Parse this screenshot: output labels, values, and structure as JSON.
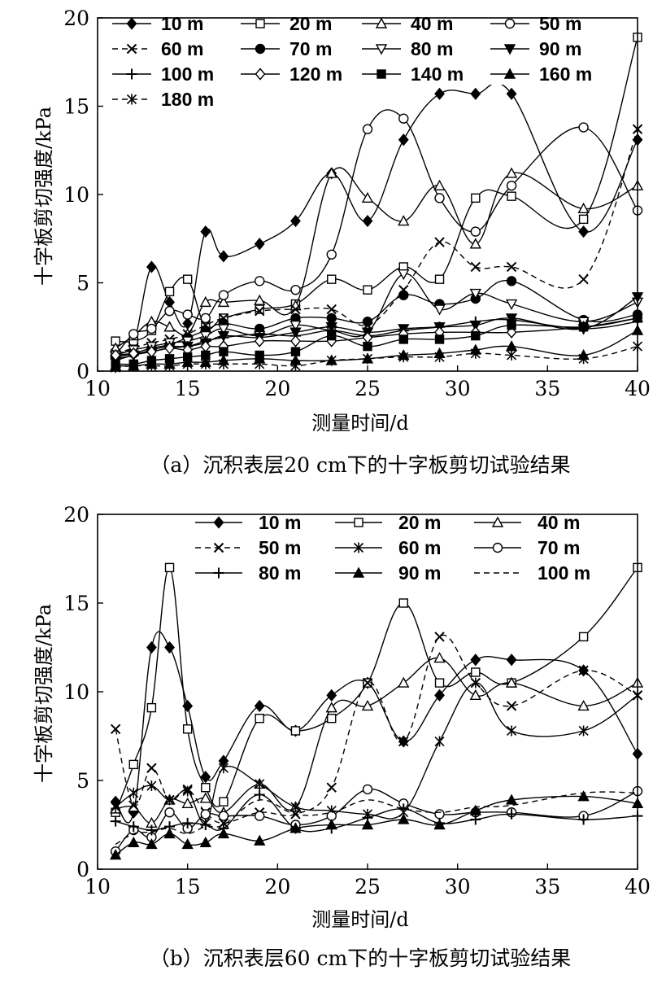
{
  "chart_data": [
    {
      "type": "line",
      "title": "",
      "caption": "（a）沉积表层20 cm下的十字板剪切试验结果",
      "xlabel": "测量时间/d",
      "ylabel": "十字板剪切强度/kPa",
      "xlim": [
        10,
        40
      ],
      "ylim": [
        0,
        20
      ],
      "xticks": [
        "10",
        "15",
        "20",
        "25",
        "30",
        "35",
        "40"
      ],
      "yticks": [
        "0",
        "5",
        "10",
        "15",
        "20"
      ],
      "legend_position": "top-left",
      "legend_columns": 4,
      "series": [
        {
          "name": "10 m",
          "marker": "diamond-filled",
          "dash": "solid",
          "x": [
            11,
            12,
            13,
            14,
            15,
            16,
            17,
            19,
            21,
            23,
            25,
            27,
            29,
            31,
            33,
            37,
            40
          ],
          "y": [
            1.1,
            1.6,
            5.9,
            3.9,
            2.7,
            7.9,
            6.5,
            7.2,
            8.5,
            11.2,
            8.5,
            13.1,
            15.7,
            15.7,
            15.7,
            7.9,
            13.1
          ]
        },
        {
          "name": "20 m",
          "marker": "square-open",
          "dash": "solid",
          "x": [
            11,
            12,
            13,
            14,
            15,
            16,
            17,
            19,
            21,
            23,
            25,
            27,
            29,
            31,
            33,
            37,
            40
          ],
          "y": [
            1.7,
            1.7,
            2.3,
            4.5,
            5.2,
            2.5,
            3.0,
            3.5,
            3.8,
            5.2,
            4.6,
            5.9,
            5.2,
            9.8,
            9.9,
            8.6,
            18.9
          ]
        },
        {
          "name": "40 m",
          "marker": "triangle-open",
          "dash": "solid",
          "x": [
            11,
            12,
            13,
            14,
            15,
            16,
            17,
            19,
            21,
            23,
            25,
            27,
            29,
            31,
            33,
            37,
            40
          ],
          "y": [
            1.3,
            2.0,
            2.8,
            2.5,
            2.1,
            3.9,
            3.9,
            4.0,
            3.7,
            11.2,
            9.8,
            8.5,
            10.5,
            7.2,
            11.2,
            9.2,
            10.5
          ]
        },
        {
          "name": "50 m",
          "marker": "circle-open",
          "dash": "solid",
          "x": [
            11,
            12,
            13,
            14,
            15,
            16,
            17,
            19,
            21,
            23,
            25,
            27,
            29,
            31,
            33,
            37,
            40
          ],
          "y": [
            0.9,
            2.1,
            2.4,
            3.4,
            3.2,
            3.0,
            4.3,
            5.1,
            4.6,
            6.6,
            13.7,
            14.3,
            9.8,
            7.9,
            10.5,
            13.8,
            9.1
          ]
        },
        {
          "name": "60 m",
          "marker": "x",
          "dash": "dashed",
          "x": [
            11,
            12,
            13,
            14,
            15,
            16,
            17,
            19,
            21,
            23,
            25,
            27,
            29,
            31,
            33,
            37,
            40
          ],
          "y": [
            1.0,
            1.3,
            1.6,
            1.8,
            2.1,
            2.6,
            3.0,
            3.4,
            3.5,
            3.5,
            2.6,
            4.6,
            7.3,
            5.9,
            5.9,
            5.2,
            13.7
          ]
        },
        {
          "name": "70 m",
          "marker": "circle-filled",
          "dash": "solid",
          "x": [
            11,
            12,
            13,
            14,
            15,
            16,
            17,
            19,
            21,
            23,
            25,
            27,
            29,
            31,
            33,
            37,
            40
          ],
          "y": [
            0.8,
            1.0,
            1.3,
            1.5,
            1.9,
            2.3,
            2.7,
            2.4,
            3.0,
            3.0,
            2.8,
            4.3,
            3.8,
            4.1,
            5.1,
            2.9,
            3.2
          ]
        },
        {
          "name": "80 m",
          "marker": "triangle-down-open",
          "dash": "solid",
          "x": [
            11,
            12,
            13,
            14,
            15,
            16,
            17,
            19,
            21,
            23,
            25,
            27,
            29,
            31,
            33,
            37,
            40
          ],
          "y": [
            0.9,
            1.2,
            1.4,
            1.6,
            1.7,
            2.0,
            2.4,
            2.0,
            2.6,
            2.3,
            2.2,
            5.5,
            3.5,
            4.4,
            3.8,
            2.8,
            3.9
          ]
        },
        {
          "name": "90 m",
          "marker": "triangle-down-filled",
          "dash": "solid",
          "x": [
            11,
            12,
            13,
            14,
            15,
            16,
            17,
            19,
            21,
            23,
            25,
            27,
            29,
            31,
            33,
            37,
            40
          ],
          "y": [
            0.6,
            0.9,
            1.1,
            1.3,
            1.4,
            1.6,
            2.0,
            1.9,
            2.2,
            2.5,
            2.2,
            2.4,
            2.5,
            2.6,
            3.0,
            2.4,
            4.2
          ]
        },
        {
          "name": "100 m",
          "marker": "plus",
          "dash": "solid",
          "x": [
            11,
            12,
            13,
            14,
            15,
            16,
            17,
            19,
            21,
            23,
            25,
            27,
            29,
            31,
            33,
            37,
            40
          ],
          "y": [
            0.7,
            0.9,
            1.2,
            1.4,
            1.4,
            1.7,
            1.9,
            2.1,
            2.0,
            2.3,
            2.0,
            2.3,
            2.5,
            2.8,
            2.9,
            2.4,
            2.8
          ]
        },
        {
          "name": "120 m",
          "marker": "diamond-open",
          "dash": "solid",
          "x": [
            11,
            12,
            13,
            14,
            15,
            16,
            17,
            19,
            21,
            23,
            25,
            27,
            29,
            31,
            33,
            37,
            40
          ],
          "y": [
            0.9,
            1.0,
            1.1,
            1.3,
            1.2,
            1.4,
            1.4,
            1.7,
            1.7,
            1.7,
            1.9,
            2.1,
            2.2,
            2.2,
            2.2,
            2.5,
            3.0
          ]
        },
        {
          "name": "140 m",
          "marker": "square-filled",
          "dash": "solid",
          "x": [
            11,
            12,
            13,
            14,
            15,
            16,
            17,
            19,
            21,
            23,
            25,
            27,
            29,
            31,
            33,
            37,
            40
          ],
          "y": [
            0.4,
            0.4,
            0.6,
            0.7,
            0.8,
            0.9,
            1.1,
            0.9,
            1.1,
            2.0,
            1.4,
            1.8,
            1.8,
            2.0,
            2.6,
            2.5,
            3.0
          ]
        },
        {
          "name": "160 m",
          "marker": "triangle-filled",
          "dash": "solid",
          "x": [
            11,
            12,
            13,
            14,
            15,
            16,
            17,
            19,
            21,
            23,
            25,
            27,
            29,
            31,
            33,
            37,
            40
          ],
          "y": [
            0.3,
            0.3,
            0.4,
            0.4,
            0.5,
            0.5,
            0.6,
            0.7,
            0.6,
            0.6,
            0.7,
            0.9,
            1.0,
            1.2,
            1.4,
            0.9,
            2.3
          ]
        },
        {
          "name": "180 m",
          "marker": "asterisk",
          "dash": "dashed",
          "x": [
            11,
            12,
            13,
            14,
            15,
            16,
            17,
            19,
            21,
            23,
            25,
            27,
            29,
            31,
            33,
            37,
            40
          ],
          "y": [
            0.2,
            0.3,
            0.3,
            0.3,
            0.4,
            0.4,
            0.4,
            0.4,
            0.3,
            0.6,
            0.7,
            0.8,
            0.8,
            1.0,
            0.9,
            0.7,
            1.4
          ]
        }
      ]
    },
    {
      "type": "line",
      "title": "",
      "caption": "（b）沉积表层60 cm下的十字板剪切试验结果",
      "xlabel": "测量时间/d",
      "ylabel": "十字板剪切强度/kPa",
      "xlim": [
        10,
        40
      ],
      "ylim": [
        0,
        20
      ],
      "xticks": [
        "10",
        "15",
        "20",
        "25",
        "30",
        "35",
        "40"
      ],
      "yticks": [
        "0",
        "5",
        "10",
        "15",
        "20"
      ],
      "legend_position": "top-right",
      "legend_columns": 3,
      "series": [
        {
          "name": "10 m",
          "marker": "diamond-filled",
          "dash": "solid",
          "x": [
            11,
            12,
            13,
            14,
            15,
            16,
            17,
            19,
            21,
            23,
            25,
            27,
            29,
            31,
            33,
            37,
            40
          ],
          "y": [
            3.8,
            3.2,
            12.5,
            12.5,
            9.2,
            5.2,
            6.1,
            9.2,
            7.8,
            9.8,
            10.5,
            7.2,
            9.8,
            11.8,
            11.8,
            11.2,
            6.5
          ]
        },
        {
          "name": "20 m",
          "marker": "square-open",
          "dash": "solid",
          "x": [
            11,
            12,
            13,
            14,
            15,
            16,
            17,
            19,
            21,
            23,
            25,
            27,
            29,
            31,
            33,
            37,
            40
          ],
          "y": [
            3.2,
            5.9,
            9.1,
            17.0,
            7.9,
            4.6,
            3.8,
            8.5,
            7.8,
            8.5,
            10.5,
            15.0,
            10.5,
            11.1,
            10.5,
            13.1,
            17.0
          ]
        },
        {
          "name": "40 m",
          "marker": "triangle-open",
          "dash": "solid",
          "x": [
            11,
            12,
            13,
            14,
            15,
            16,
            17,
            19,
            21,
            23,
            25,
            27,
            29,
            31,
            33,
            37,
            40
          ],
          "y": [
            3.4,
            3.5,
            2.6,
            3.9,
            3.7,
            4.0,
            3.2,
            4.8,
            3.5,
            9.1,
            9.2,
            10.5,
            11.9,
            9.8,
            10.5,
            9.2,
            10.5
          ]
        },
        {
          "name": "50 m",
          "marker": "x",
          "dash": "dashed",
          "x": [
            11,
            12,
            13,
            14,
            15,
            16,
            17,
            19,
            21,
            23,
            25,
            27,
            29,
            31,
            33,
            37,
            40
          ],
          "y": [
            7.9,
            3.6,
            5.7,
            3.9,
            4.5,
            3.2,
            2.6,
            3.2,
            3.1,
            4.6,
            10.5,
            7.2,
            13.1,
            10.5,
            9.2,
            11.2,
            9.8
          ]
        },
        {
          "name": "60 m",
          "marker": "asterisk",
          "dash": "solid",
          "x": [
            11,
            12,
            13,
            14,
            15,
            16,
            17,
            19,
            21,
            23,
            25,
            27,
            29,
            31,
            33,
            37,
            40
          ],
          "y": [
            3.5,
            4.3,
            4.7,
            3.9,
            4.4,
            2.6,
            5.7,
            4.8,
            3.5,
            3.3,
            3.1,
            3.2,
            7.2,
            10.5,
            7.8,
            7.8,
            9.8
          ]
        },
        {
          "name": "70 m",
          "marker": "circle-open",
          "dash": "solid",
          "x": [
            11,
            12,
            13,
            14,
            15,
            16,
            17,
            19,
            21,
            23,
            25,
            27,
            29,
            31,
            33,
            37,
            40
          ],
          "y": [
            1.0,
            2.2,
            1.8,
            3.2,
            2.3,
            3.1,
            3.0,
            3.0,
            2.5,
            3.0,
            4.5,
            3.7,
            3.1,
            3.2,
            3.2,
            3.0,
            4.4
          ]
        },
        {
          "name": "80 m",
          "marker": "plus",
          "dash": "solid",
          "x": [
            11,
            12,
            13,
            14,
            15,
            16,
            17,
            19,
            21,
            23,
            25,
            27,
            29,
            31,
            33,
            37,
            40
          ],
          "y": [
            2.7,
            2.4,
            2.2,
            2.4,
            2.6,
            2.5,
            2.3,
            4.2,
            2.3,
            2.3,
            2.9,
            3.4,
            2.6,
            2.8,
            3.1,
            2.8,
            3.0
          ]
        },
        {
          "name": "90 m",
          "marker": "triangle-filled",
          "dash": "solid",
          "x": [
            11,
            12,
            13,
            14,
            15,
            16,
            17,
            19,
            21,
            23,
            25,
            27,
            29,
            31,
            33,
            37,
            40
          ],
          "y": [
            0.8,
            1.5,
            1.4,
            2.0,
            1.4,
            1.5,
            2.0,
            1.6,
            2.3,
            2.5,
            2.5,
            2.8,
            2.5,
            3.3,
            3.9,
            4.1,
            3.7
          ]
        },
        {
          "name": "100 m",
          "marker": "none",
          "dash": "dashed",
          "x": [
            11,
            12,
            13,
            14,
            15,
            16,
            17,
            19,
            21,
            23,
            25,
            27,
            29,
            31,
            33,
            37,
            40
          ],
          "y": [
            1.4,
            2.0,
            2.1,
            2.3,
            2.0,
            2.4,
            2.5,
            3.9,
            3.1,
            3.2,
            3.9,
            3.4,
            3.2,
            3.5,
            3.6,
            4.3,
            4.3
          ]
        }
      ]
    }
  ]
}
